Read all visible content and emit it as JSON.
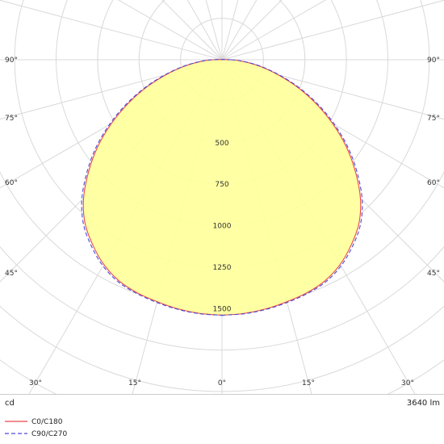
{
  "chart_data": {
    "type": "polar-luminous-intensity",
    "unit_label": "cd",
    "flux_label": "3640 lm",
    "radial_ticks": [
      500,
      750,
      1000,
      1250,
      1500
    ],
    "radial_tick_labels": [
      "500",
      "750",
      "1000",
      "1250",
      "1500"
    ],
    "radial_grid_values": [
      250,
      500,
      750,
      1000,
      1250,
      1500,
      1750,
      2000,
      2250
    ],
    "angle_grid_step_deg": 15,
    "angle_labels": {
      "bottom": [
        "30°",
        "15°",
        "0°",
        "15°",
        "30°"
      ],
      "left": [
        "90°",
        "75°",
        "60°",
        "45°"
      ],
      "right": [
        "90°",
        "75°",
        "60°",
        "45°"
      ]
    },
    "grid": true,
    "legend_position": "bottom-left",
    "fill_color": "#ffff99",
    "series": [
      {
        "name": "C0/C180",
        "color": "#e8484c",
        "dash": "solid",
        "angles_deg": [
          0,
          5,
          10,
          15,
          20,
          25,
          30,
          35,
          40,
          45,
          50,
          55,
          60,
          65,
          70,
          75,
          80,
          85,
          90
        ],
        "intensity_cd": [
          1540,
          1535,
          1525,
          1510,
          1495,
          1470,
          1425,
          1360,
          1285,
          1180,
          1050,
          915,
          770,
          625,
          485,
          350,
          235,
          135,
          55
        ]
      },
      {
        "name": "C90/C270",
        "color": "#4a4ad8",
        "dash": "dashed",
        "angles_deg": [
          0,
          5,
          10,
          15,
          20,
          25,
          30,
          35,
          40,
          45,
          50,
          55,
          60,
          65,
          70,
          75,
          80,
          85,
          90
        ],
        "intensity_cd": [
          1540,
          1537,
          1528,
          1515,
          1500,
          1478,
          1435,
          1372,
          1298,
          1195,
          1065,
          930,
          785,
          640,
          497,
          360,
          243,
          140,
          55
        ]
      }
    ]
  }
}
